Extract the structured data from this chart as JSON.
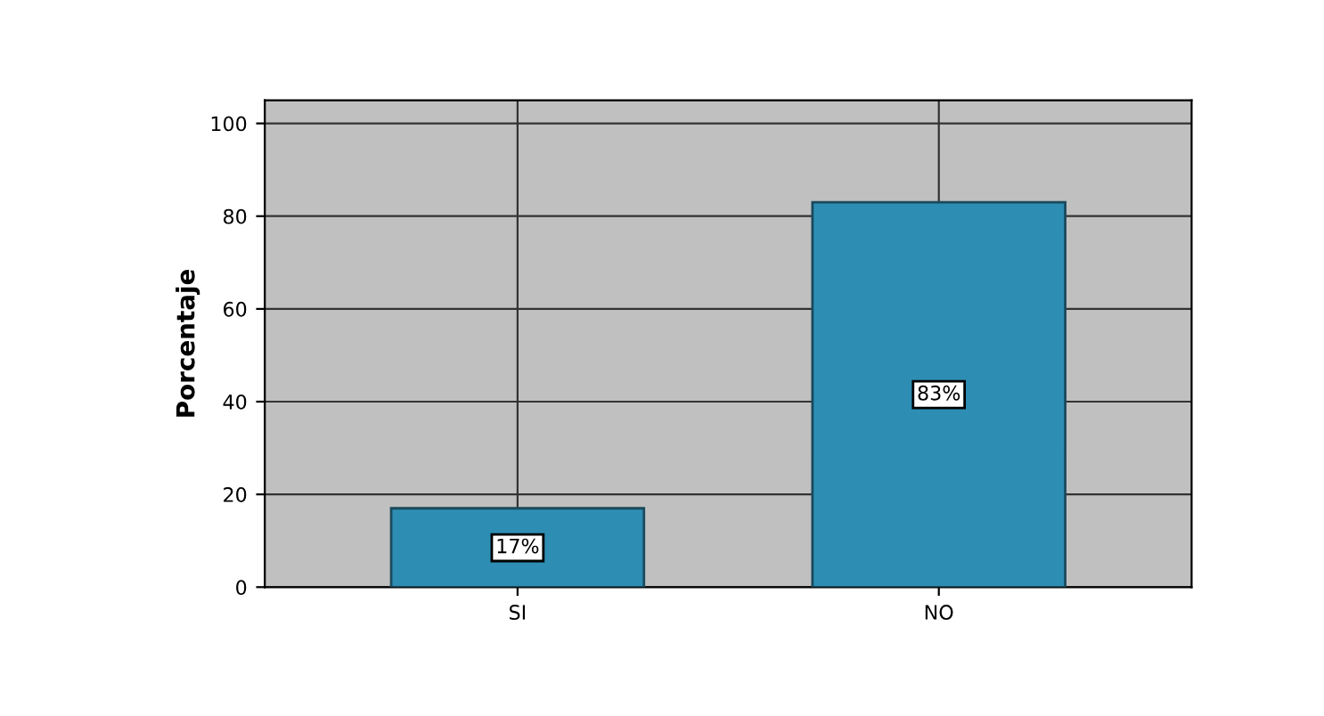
{
  "chart_data": {
    "type": "bar",
    "ylabel": "Porcentaje",
    "categories": [
      "SI",
      "NO"
    ],
    "values": [
      17,
      83
    ],
    "color": "#2e8db3",
    "value_labels": [
      "17%",
      "83%"
    ],
    "ylim": [
      0,
      105
    ],
    "yticks": [
      0,
      20,
      40,
      60,
      80,
      100
    ],
    "grid": true
  }
}
